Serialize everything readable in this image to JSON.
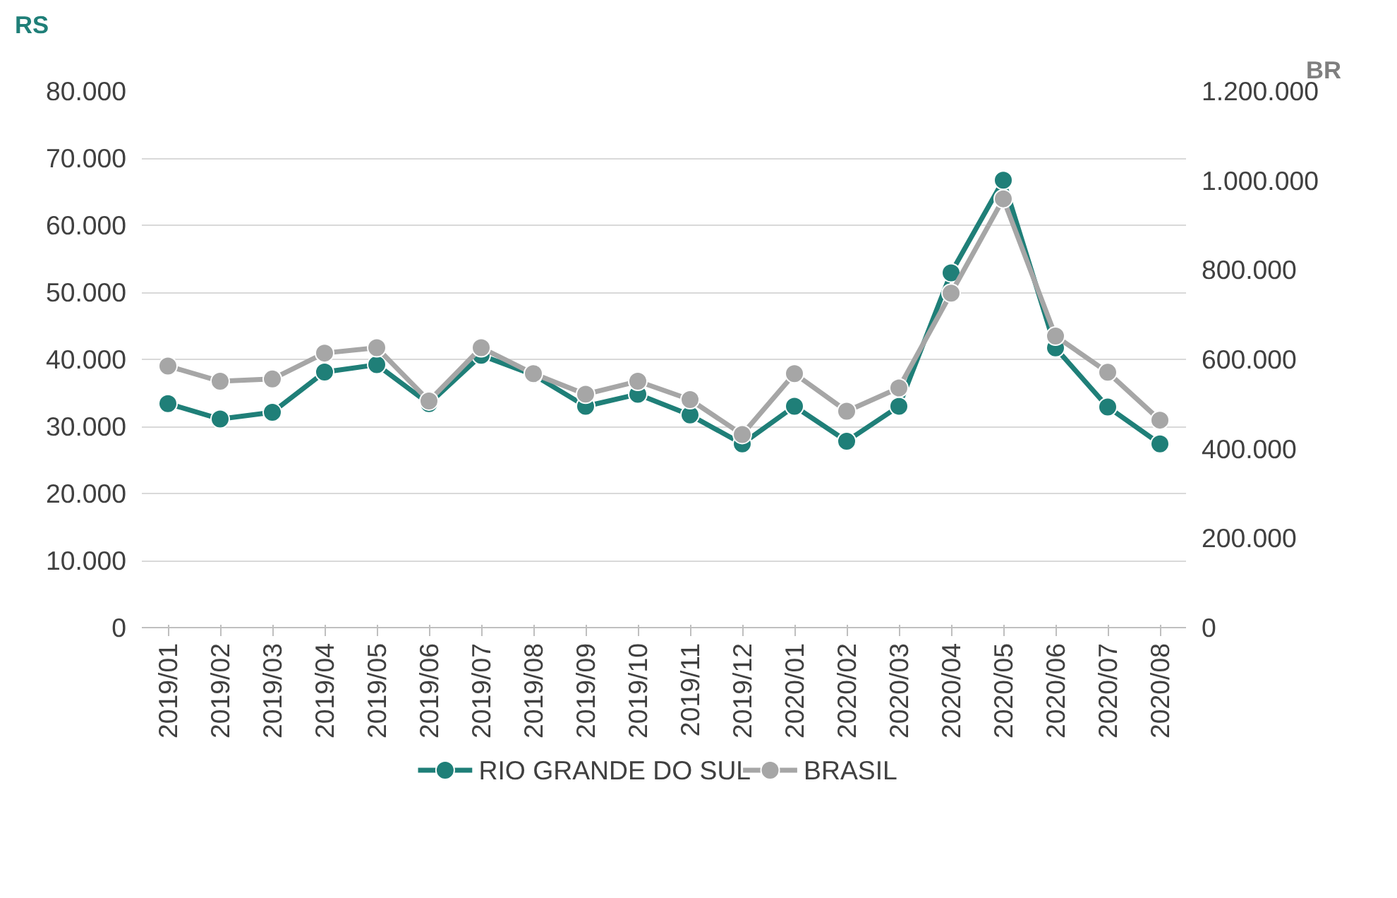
{
  "chart_data": {
    "type": "line",
    "ylabel": "RS",
    "y2label": "BR",
    "categories": [
      "2019/01",
      "2019/02",
      "2019/03",
      "2019/04",
      "2019/05",
      "2019/06",
      "2019/07",
      "2019/08",
      "2019/09",
      "2019/10",
      "2019/11",
      "2019/12",
      "2020/01",
      "2020/02",
      "2020/03",
      "2020/04",
      "2020/05",
      "2020/06",
      "2020/07",
      "2020/08"
    ],
    "series": [
      {
        "name": "RIO GRANDE DO SUL",
        "color": "#1f7f78",
        "values": [
          33400,
          31100,
          32100,
          38100,
          39200,
          33400,
          40600,
          37700,
          33000,
          34800,
          31700,
          27400,
          33000,
          27800,
          33000,
          52900,
          66700,
          41700,
          32900,
          27400
        ]
      },
      {
        "name": "BRASIL",
        "color": "#a6a6a6",
        "axis": "y2",
        "values": [
          585000,
          551000,
          556000,
          614000,
          626000,
          507000,
          626000,
          568000,
          522000,
          551000,
          510000,
          432000,
          568000,
          484000,
          536000,
          748000,
          959000,
          652000,
          571000,
          464000
        ]
      }
    ],
    "ylim": [
      0,
      80000
    ],
    "yticks": [
      {
        "value": 0,
        "label": "0"
      },
      {
        "value": 10000,
        "label": "10.000"
      },
      {
        "value": 20000,
        "label": "20.000"
      },
      {
        "value": 30000,
        "label": "30.000"
      },
      {
        "value": 40000,
        "label": "40.000"
      },
      {
        "value": 50000,
        "label": "50.000"
      },
      {
        "value": 60000,
        "label": "60.000"
      },
      {
        "value": 70000,
        "label": "70.000"
      },
      {
        "value": 80000,
        "label": "80.000"
      }
    ],
    "y2lim": [
      0,
      1200000
    ],
    "y2ticks": [
      {
        "value": 0,
        "label": "0"
      },
      {
        "value": 200000,
        "label": "200.000"
      },
      {
        "value": 400000,
        "label": "400.000"
      },
      {
        "value": 600000,
        "label": "600.000"
      },
      {
        "value": 800000,
        "label": "800.000"
      },
      {
        "value": 1000000,
        "label": "1.000.000"
      },
      {
        "value": 1200000,
        "label": "1.200.000"
      }
    ],
    "grid": "y",
    "legend": "bottom",
    "marker": "circle",
    "line_style": "solid"
  }
}
